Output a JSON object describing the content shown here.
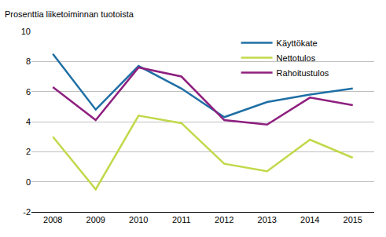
{
  "chart_data": {
    "type": "line",
    "y_label": "Prosenttia liiketoiminnan tuotoista",
    "categories": [
      "2008",
      "2009",
      "2010",
      "2011",
      "2012",
      "2013",
      "2014",
      "2015"
    ],
    "series": [
      {
        "name": "Käyttökate",
        "color": "#1f6fa5",
        "values": [
          8.5,
          4.8,
          7.7,
          6.2,
          4.3,
          5.3,
          5.8,
          6.2
        ]
      },
      {
        "name": "Nettotulos",
        "color": "#c3d84a",
        "values": [
          3.0,
          -0.5,
          4.4,
          3.9,
          1.2,
          0.7,
          2.8,
          1.6
        ]
      },
      {
        "name": "Rahoitustulos",
        "color": "#8e1f7f",
        "values": [
          6.3,
          4.1,
          7.6,
          7.0,
          4.1,
          3.8,
          5.6,
          5.1
        ]
      }
    ],
    "ylim": [
      -2,
      10
    ],
    "yticks": [
      -2,
      0,
      2,
      4,
      6,
      8,
      10
    ],
    "grid": true,
    "legend": "upper right"
  }
}
